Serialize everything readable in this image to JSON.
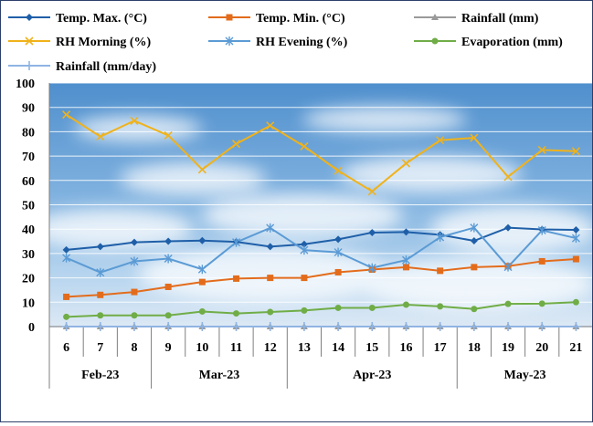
{
  "chart_data": {
    "type": "line",
    "ylim": [
      0,
      100
    ],
    "y_ticks": [
      0,
      10,
      20,
      30,
      40,
      50,
      60,
      70,
      80,
      90,
      100
    ],
    "grid": true,
    "legend_position": "top",
    "plot_background": "sky photo (blue with white clouds)",
    "categories": [
      "6",
      "7",
      "8",
      "9",
      "10",
      "11",
      "12",
      "13",
      "14",
      "15",
      "16",
      "17",
      "18",
      "19",
      "20",
      "21"
    ],
    "month_groups": [
      {
        "label": "Feb-23",
        "start": 0,
        "end": 2
      },
      {
        "label": "Mar-23",
        "start": 3,
        "end": 6
      },
      {
        "label": "Apr-23",
        "start": 7,
        "end": 11
      },
      {
        "label": "May-23",
        "start": 12,
        "end": 15
      }
    ],
    "series": [
      {
        "name": "Temp. Max. (°C)",
        "color": "#1f5fa8",
        "marker": "diamond",
        "values": [
          31.5,
          32.8,
          34.6,
          35.0,
          35.3,
          34.8,
          32.8,
          33.8,
          35.8,
          38.6,
          38.8,
          37.7,
          35.2,
          40.6,
          39.9,
          39.7
        ]
      },
      {
        "name": "Temp. Min. (°C)",
        "color": "#e36c1c",
        "marker": "square",
        "values": [
          12.2,
          13.0,
          14.2,
          16.3,
          18.3,
          19.7,
          20.0,
          20.0,
          22.3,
          23.4,
          24.4,
          22.9,
          24.4,
          24.8,
          26.8,
          27.7
        ]
      },
      {
        "name": "Rainfall (mm)",
        "color": "#9a9a9a",
        "marker": "triangle",
        "values": [
          0,
          0,
          0,
          0,
          0,
          0,
          0,
          0,
          0,
          0,
          0,
          0,
          0,
          0,
          0,
          0
        ]
      },
      {
        "name": "RH Morning (%)",
        "color": "#f0b21a",
        "marker": "x",
        "values": [
          87,
          78,
          84.5,
          78.5,
          64.5,
          75,
          82.5,
          74,
          64,
          55.5,
          67,
          76.5,
          77.5,
          61.5,
          72.5,
          72
        ]
      },
      {
        "name": "RH Evening (%)",
        "color": "#5b9bd5",
        "marker": "star",
        "values": [
          28.2,
          22.2,
          26.8,
          27.9,
          23.5,
          34.6,
          40.5,
          31.4,
          30.5,
          24.1,
          27.3,
          36.7,
          40.6,
          24.5,
          39.5,
          36.3
        ]
      },
      {
        "name": "Evaporation (mm)",
        "color": "#70ad47",
        "marker": "circle",
        "values": [
          4.0,
          4.6,
          4.6,
          4.6,
          6.2,
          5.4,
          6.0,
          6.6,
          7.7,
          7.7,
          9.0,
          8.3,
          7.2,
          9.3,
          9.4,
          10.0
        ]
      },
      {
        "name": "Rainfall  (mm/day)",
        "color": "#8fb4e3",
        "marker": "plus",
        "values": [
          0,
          0,
          0,
          0,
          0,
          0,
          0,
          0,
          0,
          0,
          0,
          0,
          0,
          0,
          0,
          0
        ]
      }
    ]
  }
}
